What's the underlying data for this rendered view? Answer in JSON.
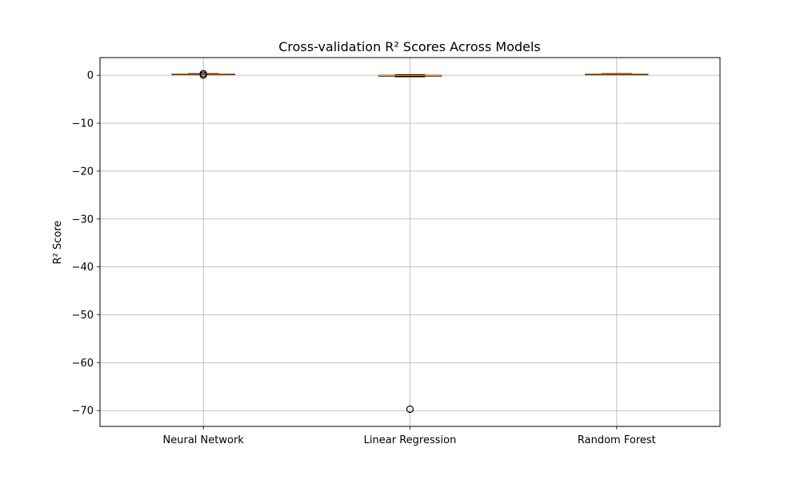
{
  "chart_data": {
    "type": "box",
    "title": "Cross-validation R² Scores Across Models",
    "xlabel": "",
    "ylabel": "R² Score",
    "ylim": [
      -73.3,
      3.7
    ],
    "yticks": [
      0,
      -10,
      -20,
      -30,
      -40,
      -50,
      -60,
      -70
    ],
    "ytick_labels": [
      "0",
      "−10",
      "−20",
      "−30",
      "−40",
      "−50",
      "−60",
      "−70"
    ],
    "grid": true,
    "categories": [
      "Neural Network",
      "Linear Regression",
      "Random Forest"
    ],
    "boxes": [
      {
        "name": "Neural Network",
        "whislo": 0.1,
        "q1": 0.12,
        "med": 0.2,
        "q3": 0.28,
        "whishi": 0.35,
        "fliers": [
          0.35,
          0.05
        ]
      },
      {
        "name": "Linear Regression",
        "whislo": -0.3,
        "q1": -0.1,
        "med": -0.05,
        "q3": 0.0,
        "whishi": 0.15,
        "fliers": [
          -69.7
        ]
      },
      {
        "name": "Random Forest",
        "whislo": 0.1,
        "q1": 0.15,
        "med": 0.22,
        "q3": 0.28,
        "whishi": 0.35,
        "fliers": []
      }
    ],
    "colors": {
      "box": "#000000",
      "median": "#ff7f0e",
      "grid": "#b0b0b0",
      "flier": "#000000"
    }
  }
}
